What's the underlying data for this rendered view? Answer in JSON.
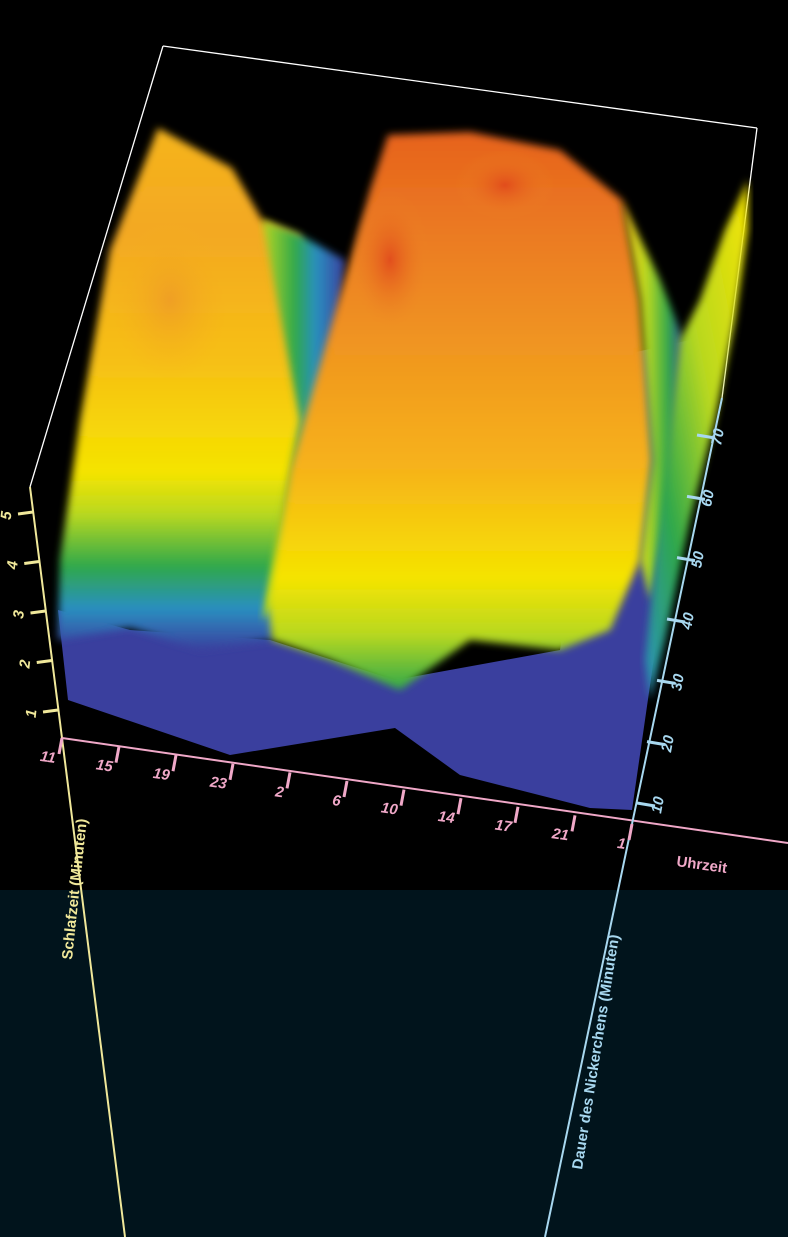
{
  "chart_data": {
    "type": "surface-3d",
    "title": "",
    "xlabel": "Uhrzeit",
    "ylabel": "Dauer des Nickerchens (Minuten)",
    "zlabel": "Schlafzeit (Minuten)",
    "x_ticks": [
      "11",
      "15",
      "19",
      "23",
      "2",
      "6",
      "10",
      "14",
      "17",
      "21",
      "1"
    ],
    "y_ticks": [
      "10",
      "20",
      "30",
      "40",
      "50",
      "60",
      "70"
    ],
    "z_ticks": [
      "1",
      "2",
      "3",
      "4",
      "5"
    ],
    "zlim": [
      0,
      5
    ],
    "colormap": [
      "#3a3f9e",
      "#2a8fc0",
      "#2fa84a",
      "#b8d820",
      "#f5e400",
      "#f6b21a",
      "#ee8a22",
      "#e0461c"
    ],
    "surface_profile_along_time": [
      {
        "time": "11",
        "sleep_minutes": 1.6
      },
      {
        "time": "15",
        "sleep_minutes": 4.2
      },
      {
        "time": "19",
        "sleep_minutes": 4.0
      },
      {
        "time": "23",
        "sleep_minutes": 2.4
      },
      {
        "time": "2",
        "sleep_minutes": 1.0
      },
      {
        "time": "6",
        "sleep_minutes": 4.4
      },
      {
        "time": "10",
        "sleep_minutes": 4.6
      },
      {
        "time": "14",
        "sleep_minutes": 4.3
      },
      {
        "time": "17",
        "sleep_minutes": 2.0
      },
      {
        "time": "21",
        "sleep_minutes": 1.0
      },
      {
        "time": "1",
        "sleep_minutes": 3.6
      }
    ]
  },
  "colors": {
    "background_top": "#000000",
    "background_bottom": "#01141c",
    "time_axis": "#f0a8c8",
    "nap_axis": "#a8d8f0",
    "sleep_axis": "#f0e89a",
    "box_edge": "#ffffff"
  }
}
